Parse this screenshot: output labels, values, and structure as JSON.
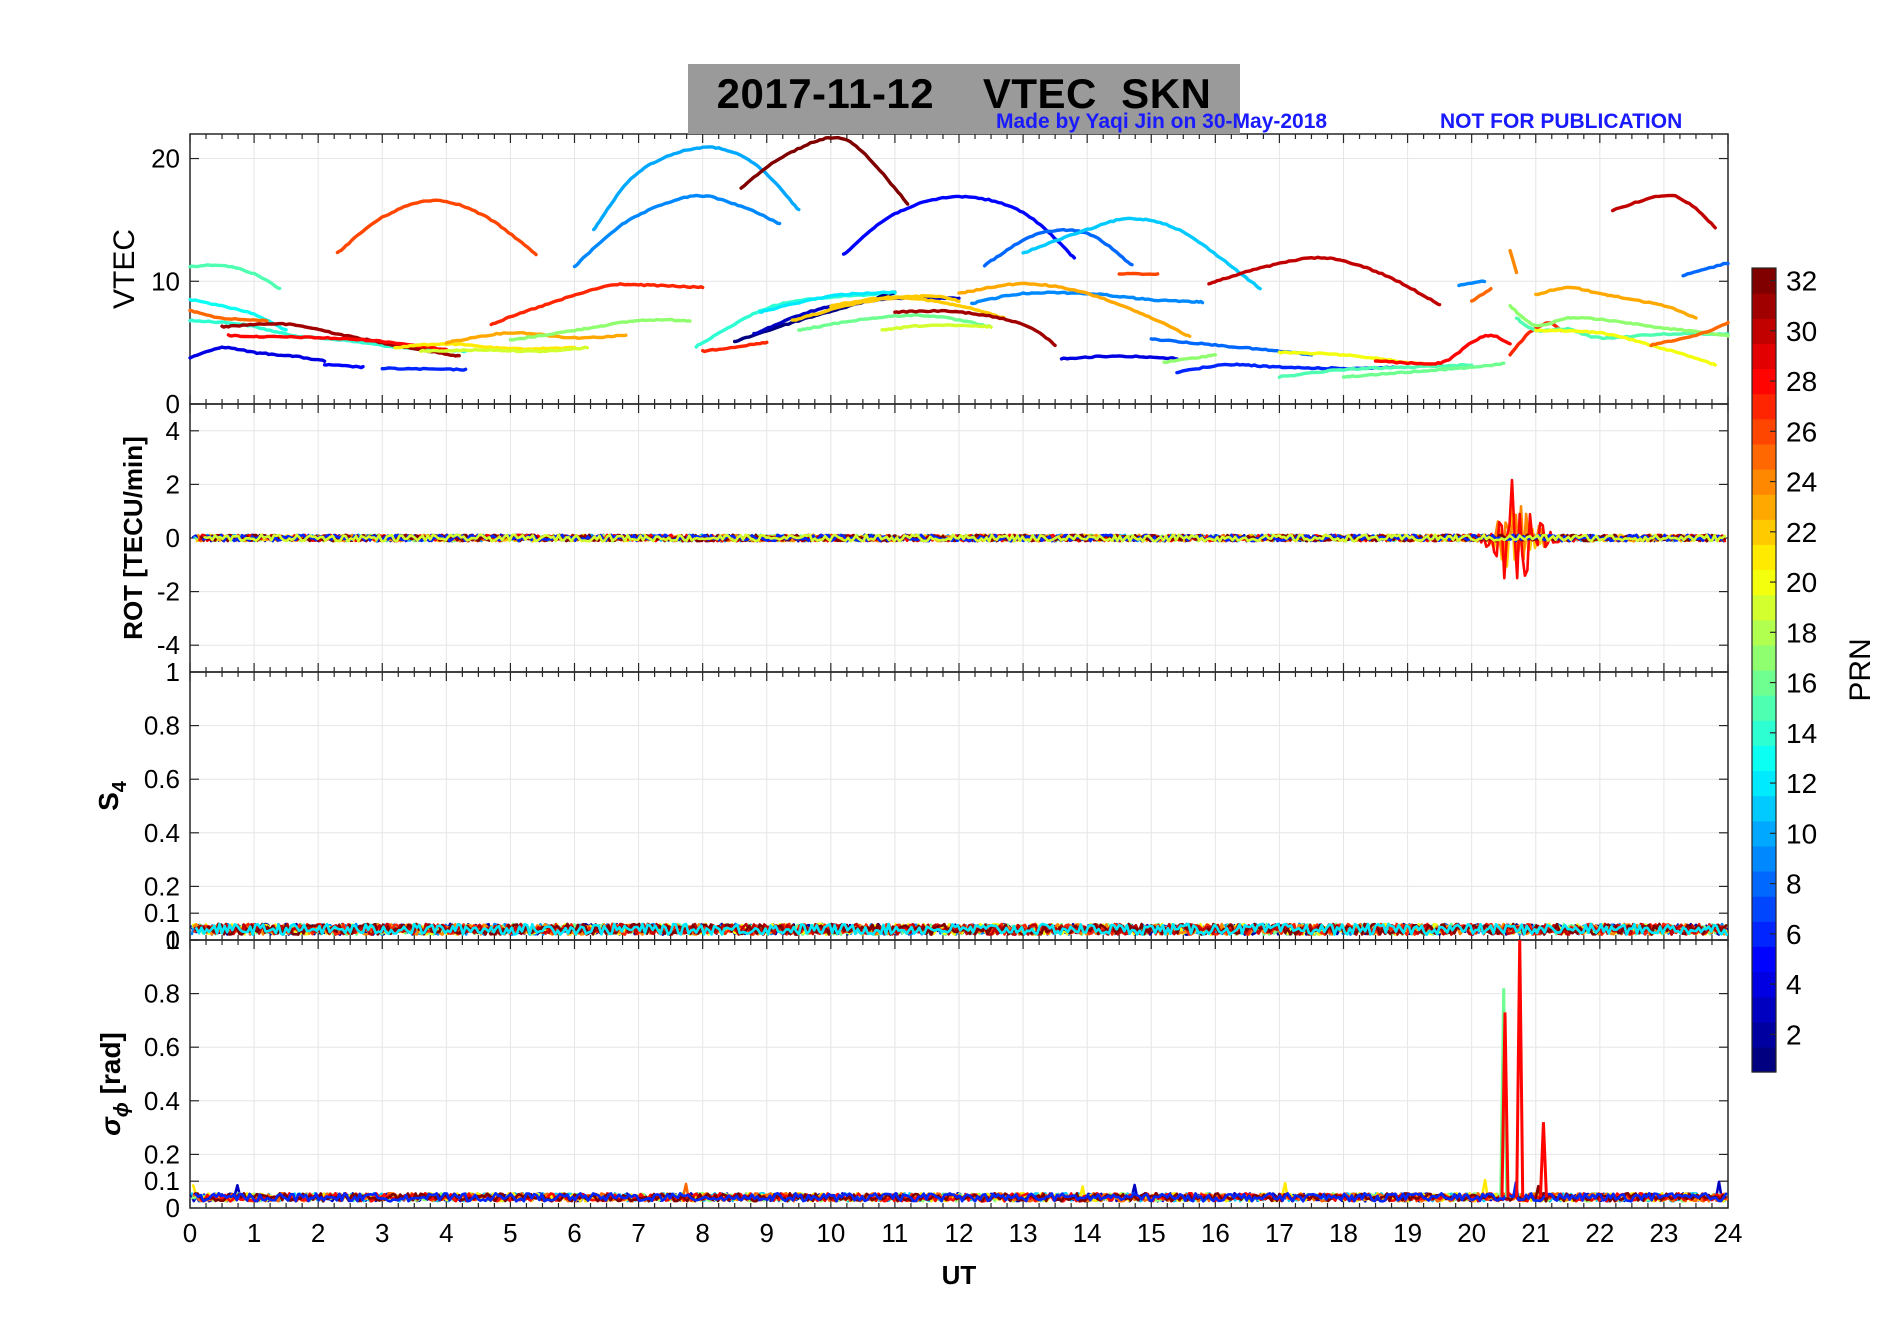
{
  "title": "2017-11-12    VTEC  SKN",
  "credit": "Made by Yaqi Jin on 30-May-2018",
  "warning": "NOT FOR PUBLICATION",
  "colors": {
    "credit_text": "#1a1aff",
    "title_background": "#9a9a9a",
    "grid": "#e6e6e6",
    "axis": "#262626"
  },
  "chart_data": [
    {
      "type": "line",
      "panel": "VTEC",
      "ylabel": "VTEC",
      "xlabel": "",
      "xlim": [
        0,
        24
      ],
      "ylim": [
        0,
        22
      ],
      "yticks": [
        0,
        10,
        20
      ],
      "series": [
        {
          "prn": 15,
          "name": "PRN 15",
          "x": [
            0,
            0.5,
            1.0,
            1.4
          ],
          "y": [
            11.2,
            11.3,
            10.6,
            9.4
          ]
        },
        {
          "prn": 13,
          "name": "PRN 13",
          "x": [
            0,
            0.5,
            1.0,
            1.5
          ],
          "y": [
            8.5,
            8.0,
            7.3,
            6.0
          ]
        },
        {
          "prn": 25,
          "name": "PRN 25",
          "x": [
            0,
            0.5,
            1.2
          ],
          "y": [
            7.6,
            7.0,
            6.8
          ]
        },
        {
          "prn": 14,
          "name": "PRN 14",
          "x": [
            0,
            0.8,
            1.6,
            2.4,
            3.3,
            4.3
          ],
          "y": [
            6.8,
            6.5,
            5.6,
            5.2,
            4.6,
            4.3
          ]
        },
        {
          "prn": 31,
          "name": "PRN 31",
          "x": [
            0.5,
            1.5,
            2.5,
            3.3,
            4.2
          ],
          "y": [
            6.3,
            6.5,
            5.5,
            4.7,
            3.9
          ]
        },
        {
          "prn": 28,
          "name": "PRN 28",
          "x": [
            0.6,
            1.0,
            2.0,
            3.0,
            4.0
          ],
          "y": [
            5.6,
            5.5,
            5.4,
            5.1,
            4.4
          ]
        },
        {
          "prn": 4,
          "name": "PRN 4",
          "x": [
            0,
            0.5,
            1.0,
            1.6,
            2.1
          ],
          "y": [
            3.8,
            4.6,
            4.2,
            3.9,
            3.5
          ]
        },
        {
          "prn": 5,
          "name": "PRN 5",
          "x": [
            2.1,
            2.7
          ],
          "y": [
            3.2,
            3.0
          ]
        },
        {
          "prn": 6,
          "name": "PRN 6",
          "x": [
            3.0,
            4.3
          ],
          "y": [
            2.9,
            2.8
          ]
        },
        {
          "prn": 26,
          "name": "PRN 26",
          "x": [
            2.3,
            3.0,
            3.8,
            4.6,
            5.4
          ],
          "y": [
            12.3,
            15.2,
            16.6,
            15.3,
            12.2
          ]
        },
        {
          "prn": 21,
          "name": "PRN 21",
          "x": [
            3.2,
            4.0,
            5.0,
            6.0
          ],
          "y": [
            4.6,
            4.9,
            4.5,
            4.6
          ]
        },
        {
          "prn": 19,
          "name": "PRN 19",
          "x": [
            3.6,
            4.6,
            5.5,
            6.2
          ],
          "y": [
            4.3,
            4.4,
            4.3,
            4.6
          ]
        },
        {
          "prn": 23,
          "name": "PRN 23",
          "x": [
            4.0,
            5.0,
            6.0,
            6.8
          ],
          "y": [
            5.0,
            5.8,
            5.4,
            5.6
          ]
        },
        {
          "prn": 17,
          "name": "PRN 17",
          "x": [
            5.0,
            6.0,
            7.0,
            7.8
          ],
          "y": [
            5.2,
            6.0,
            6.8,
            6.8
          ]
        },
        {
          "prn": 27,
          "name": "PRN 27",
          "x": [
            4.7,
            5.5,
            6.5,
            7.0,
            8.0
          ],
          "y": [
            6.5,
            8.0,
            9.6,
            9.7,
            9.5
          ]
        },
        {
          "prn": 9,
          "name": "PRN 9",
          "x": [
            6.0,
            6.8,
            7.8,
            8.5,
            9.2
          ],
          "y": [
            11.2,
            14.8,
            16.9,
            16.3,
            14.7
          ]
        },
        {
          "prn": 10,
          "name": "PRN 10",
          "x": [
            6.3,
            7.0,
            8.0,
            8.8,
            9.5
          ],
          "y": [
            14.2,
            18.9,
            20.9,
            19.6,
            15.8
          ]
        },
        {
          "prn": 27,
          "name": "PRN 27",
          "x": [
            8.0,
            9.0
          ],
          "y": [
            4.3,
            5.0
          ]
        },
        {
          "prn": 14,
          "name": "PRN 14",
          "x": [
            7.9,
            9.0,
            10.0,
            11.0
          ],
          "y": [
            4.7,
            7.8,
            8.7,
            9.0
          ]
        },
        {
          "prn": 1,
          "name": "PRN 1",
          "x": [
            8.5,
            9.5,
            10.5,
            11.0
          ],
          "y": [
            5.1,
            6.8,
            8.3,
            9.1
          ]
        },
        {
          "prn": 3,
          "name": "PRN 3",
          "x": [
            8.8,
            9.8,
            11.0,
            12.0
          ],
          "y": [
            5.7,
            7.7,
            8.6,
            8.6
          ]
        },
        {
          "prn": 12,
          "name": "PRN 12",
          "x": [
            8.9,
            10.0,
            11.0
          ],
          "y": [
            7.5,
            8.8,
            9.1
          ]
        },
        {
          "prn": 22,
          "name": "PRN 22",
          "x": [
            9.4,
            10.5,
            11.5,
            12.0
          ],
          "y": [
            6.8,
            8.3,
            8.8,
            8.4
          ]
        },
        {
          "prn": 16,
          "name": "PRN 16",
          "x": [
            9.5,
            10.5,
            11.5,
            12.5
          ],
          "y": [
            6.0,
            6.9,
            7.2,
            6.3
          ]
        },
        {
          "prn": 19,
          "name": "PRN 19",
          "x": [
            10.8,
            11.5,
            12.5
          ],
          "y": [
            6.0,
            6.4,
            6.3
          ]
        },
        {
          "prn": 22,
          "name": "PRN 22",
          "x": [
            10.0,
            11.0,
            12.0,
            12.7
          ],
          "y": [
            8.0,
            8.7,
            8.0,
            7.0
          ]
        },
        {
          "prn": 31,
          "name": "PRN 31",
          "x": [
            11.0,
            12.0,
            13.0,
            13.5
          ],
          "y": [
            7.5,
            7.5,
            6.5,
            4.8
          ]
        },
        {
          "prn": 32,
          "name": "PRN 32",
          "x": [
            8.6,
            9.2,
            10.0,
            10.5,
            11.2
          ],
          "y": [
            17.6,
            20.0,
            21.7,
            20.5,
            16.3
          ]
        },
        {
          "prn": 5,
          "name": "PRN 5",
          "x": [
            10.2,
            11.0,
            12.0,
            13.0,
            13.8
          ],
          "y": [
            12.2,
            15.5,
            16.9,
            15.6,
            11.9
          ]
        },
        {
          "prn": 8,
          "name": "PRN 8",
          "x": [
            12.4,
            13.2,
            14.0,
            14.7
          ],
          "y": [
            11.3,
            13.8,
            13.9,
            11.3
          ]
        },
        {
          "prn": 9,
          "name": "PRN 9",
          "x": [
            12.2,
            13.0,
            14.0,
            15.0,
            15.8
          ],
          "y": [
            8.2,
            9.0,
            9.0,
            8.5,
            8.3
          ]
        },
        {
          "prn": 11,
          "name": "PRN 11",
          "x": [
            13.0,
            14.0,
            14.7,
            15.5,
            16.7
          ],
          "y": [
            12.3,
            14.2,
            15.1,
            14.0,
            9.4
          ]
        },
        {
          "prn": 23,
          "name": "PRN 23",
          "x": [
            12.0,
            13.0,
            14.0,
            15.0,
            15.6
          ],
          "y": [
            9.0,
            9.8,
            9.0,
            7.0,
            5.5
          ]
        },
        {
          "prn": 4,
          "name": "PRN 4",
          "x": [
            13.6,
            14.5,
            15.4
          ],
          "y": [
            3.7,
            3.9,
            3.7
          ]
        },
        {
          "prn": 26,
          "name": "PRN 26",
          "x": [
            14.5,
            15.1
          ],
          "y": [
            10.6,
            10.6
          ]
        },
        {
          "prn": 8,
          "name": "PRN 8",
          "x": [
            15.0,
            16.0,
            17.0,
            17.5
          ],
          "y": [
            5.3,
            4.8,
            4.3,
            4.0
          ]
        },
        {
          "prn": 17,
          "name": "PRN 17",
          "x": [
            15.2,
            16.0
          ],
          "y": [
            3.4,
            4.0
          ]
        },
        {
          "prn": 6,
          "name": "PRN 6",
          "x": [
            15.4,
            16.2,
            17.0,
            18.0,
            18.8
          ],
          "y": [
            2.6,
            3.2,
            3.0,
            2.9,
            3.0
          ]
        },
        {
          "prn": 30,
          "name": "PRN 30",
          "x": [
            15.9,
            16.8,
            17.7,
            18.6,
            19.5
          ],
          "y": [
            9.8,
            11.2,
            11.9,
            10.6,
            8.1
          ]
        },
        {
          "prn": 9,
          "name": "PRN 9",
          "x": [
            19.8,
            20.2
          ],
          "y": [
            9.7,
            10.0
          ]
        },
        {
          "prn": 20,
          "name": "PRN 20",
          "x": [
            17.0,
            18.0,
            19.0,
            19.7
          ],
          "y": [
            4.2,
            4.0,
            3.4,
            3.0
          ]
        },
        {
          "prn": 15,
          "name": "PRN 15",
          "x": [
            17.0,
            18.0,
            19.0,
            20.0
          ],
          "y": [
            2.2,
            2.8,
            3.0,
            3.2
          ]
        },
        {
          "prn": 16,
          "name": "PRN 16",
          "x": [
            18.0,
            19.0,
            20.0,
            20.5
          ],
          "y": [
            2.2,
            2.6,
            3.0,
            3.3
          ]
        },
        {
          "prn": 28,
          "name": "PRN 28",
          "x": [
            18.5,
            19.2,
            19.6,
            20.0,
            20.3,
            20.6
          ],
          "y": [
            3.5,
            3.3,
            3.5,
            5.0,
            5.6,
            4.9
          ]
        },
        {
          "prn": 27,
          "name": "PRN 27",
          "x": [
            20.6,
            20.9,
            21.2,
            21.4
          ],
          "y": [
            4.0,
            5.8,
            6.6,
            6.0
          ]
        },
        {
          "prn": 25,
          "name": "PRN 25",
          "x": [
            20.0,
            20.3
          ],
          "y": [
            8.4,
            9.4
          ]
        },
        {
          "prn": 24,
          "name": "PRN 24",
          "x": [
            20.6,
            20.7
          ],
          "y": [
            12.5,
            10.7
          ]
        },
        {
          "prn": 15,
          "name": "PRN 15",
          "x": [
            20.7,
            21.0,
            21.5,
            22.0,
            23.0,
            24.0
          ],
          "y": [
            7.0,
            6.0,
            6.1,
            5.4,
            5.7,
            5.7
          ]
        },
        {
          "prn": 17,
          "name": "PRN 17",
          "x": [
            20.6,
            21.0,
            21.5,
            22.0,
            23.0,
            24.0
          ],
          "y": [
            8.0,
            6.4,
            7.0,
            6.9,
            6.2,
            5.6
          ]
        },
        {
          "prn": 20,
          "name": "PRN 20",
          "x": [
            21.0,
            22.0,
            23.0,
            23.8
          ],
          "y": [
            6.0,
            5.8,
            4.5,
            3.2
          ]
        },
        {
          "prn": 23,
          "name": "PRN 23",
          "x": [
            21.0,
            21.5,
            22.0,
            23.0,
            23.5
          ],
          "y": [
            8.9,
            9.5,
            9.0,
            8.0,
            7.0
          ]
        },
        {
          "prn": 30,
          "name": "PRN 30",
          "x": [
            22.2,
            23.0,
            23.4,
            23.8
          ],
          "y": [
            15.8,
            17.0,
            16.3,
            14.4
          ]
        },
        {
          "prn": 25,
          "name": "PRN 25",
          "x": [
            22.8,
            23.5,
            24.0
          ],
          "y": [
            4.8,
            5.6,
            6.6
          ]
        },
        {
          "prn": 8,
          "name": "PRN 8",
          "x": [
            23.3,
            24.0
          ],
          "y": [
            10.5,
            11.5
          ]
        }
      ]
    },
    {
      "type": "line",
      "panel": "ROT",
      "ylabel": "ROT [TECU/min]",
      "xlim": [
        0,
        24
      ],
      "ylim": [
        -5,
        5
      ],
      "yticks": [
        -4,
        -2,
        0,
        2,
        4
      ],
      "baseline": 0.0,
      "noise_amplitude": 0.12,
      "disturbance": {
        "start_ut": 19.7,
        "end_ut": 21.6,
        "peak_ut": 20.7,
        "max": 2.2,
        "min": -1.5
      }
    },
    {
      "type": "line",
      "panel": "S4",
      "ylabel": "S4",
      "xlim": [
        0,
        24
      ],
      "ylim": [
        0,
        1
      ],
      "yticks": [
        0,
        0.1,
        0.2,
        0.4,
        0.6,
        0.8,
        1
      ],
      "baseline": 0.04,
      "noise_amplitude": 0.02
    },
    {
      "type": "line",
      "panel": "sigma_phi",
      "ylabel": "σϕ [rad]",
      "xlabel": "UT",
      "xlim": [
        0,
        24
      ],
      "ylim": [
        0,
        1
      ],
      "yticks": [
        0,
        0.1,
        0.2,
        0.4,
        0.6,
        0.8,
        1
      ],
      "xticks": [
        0,
        1,
        2,
        3,
        4,
        5,
        6,
        7,
        8,
        9,
        10,
        11,
        12,
        13,
        14,
        15,
        16,
        17,
        18,
        19,
        20,
        21,
        22,
        23,
        24
      ],
      "baseline": 0.04,
      "noise_amplitude": 0.015,
      "spikes": [
        {
          "ut": 20.5,
          "value": 0.82,
          "prn": 16
        },
        {
          "ut": 20.52,
          "value": 0.73,
          "prn": 28
        },
        {
          "ut": 20.75,
          "value": 1.0,
          "prn": 28
        },
        {
          "ut": 21.12,
          "value": 0.32,
          "prn": 28
        }
      ]
    }
  ],
  "colorbar": {
    "label": "PRN",
    "min": 1,
    "max": 32,
    "ticks": [
      2,
      4,
      6,
      8,
      10,
      12,
      14,
      16,
      18,
      20,
      22,
      24,
      26,
      28,
      30,
      32
    ]
  }
}
